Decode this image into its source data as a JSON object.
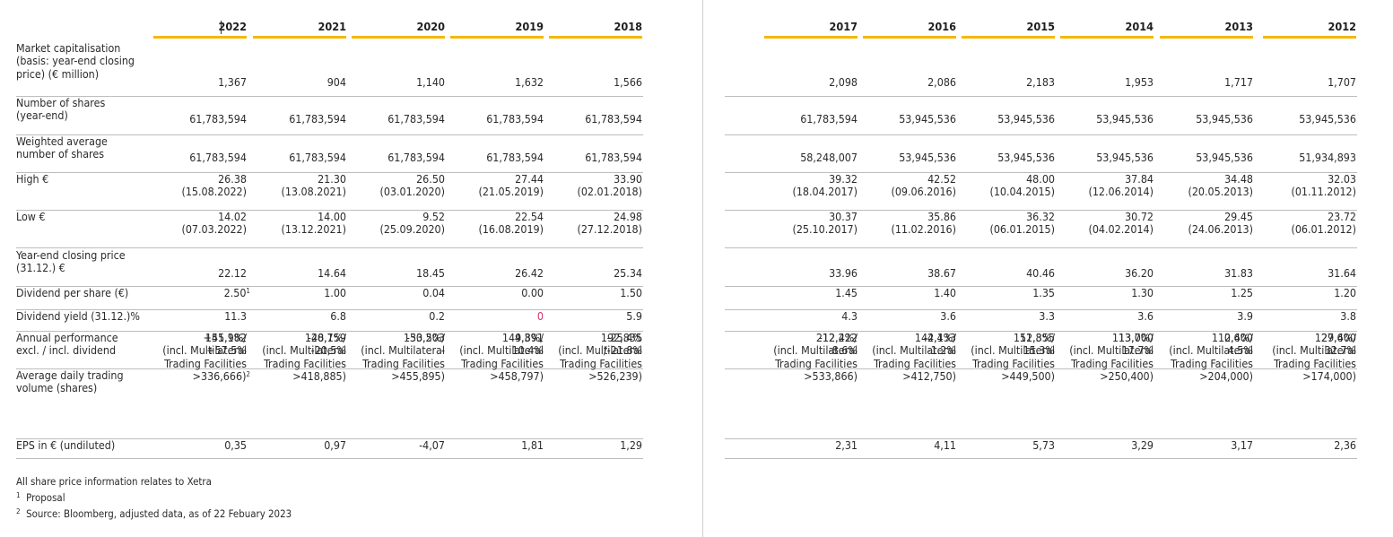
{
  "years": [
    "2022",
    "2021",
    "2020",
    "2019",
    "2018",
    "2017",
    "2016",
    "2015",
    "2014",
    "2013",
    "2012"
  ],
  "rows": [
    {
      "label_lines": [
        "Market capitalisation",
        "(basis: year-end closing",
        "price) (€ million)"
      ],
      "values": [
        [
          "1,367"
        ],
        [
          "904"
        ],
        [
          "1,140"
        ],
        [
          "1,632"
        ],
        [
          "1,566"
        ],
        [
          "2,098"
        ],
        [
          "2,086"
        ],
        [
          "2,183"
        ],
        [
          "1,953"
        ],
        [
          "1,717"
        ],
        [
          "1,707"
        ]
      ]
    },
    {
      "label_lines": [
        "Number of shares",
        "(year-end)"
      ],
      "values": [
        [
          "61,783,594"
        ],
        [
          "61,783,594"
        ],
        [
          "61,783,594"
        ],
        [
          "61,783,594"
        ],
        [
          "61,783,594"
        ],
        [
          "61,783,594"
        ],
        [
          "53,945,536"
        ],
        [
          "53,945,536"
        ],
        [
          "53,945,536"
        ],
        [
          "53,945,536"
        ],
        [
          "53,945,536"
        ]
      ]
    },
    {
      "label_lines": [
        "Weighted average",
        "number of shares"
      ],
      "values": [
        [
          "61,783,594"
        ],
        [
          "61,783,594"
        ],
        [
          "61,783,594"
        ],
        [
          "61,783,594"
        ],
        [
          "61,783,594"
        ],
        [
          "58,248,007"
        ],
        [
          "53,945,536"
        ],
        [
          "53,945,536"
        ],
        [
          "53,945,536"
        ],
        [
          "53,945,536"
        ],
        [
          "51,934,893"
        ]
      ]
    },
    {
      "label_lines": [
        "High €"
      ],
      "values": [
        [
          "26.38",
          "(15.08.2022)"
        ],
        [
          "21.30",
          "(13.08.2021)"
        ],
        [
          "26.50",
          "(03.01.2020)"
        ],
        [
          "27.44",
          "(21.05.2019)"
        ],
        [
          "33.90",
          "(02.01.2018)"
        ],
        [
          "39.32",
          "(18.04.2017)"
        ],
        [
          "42.52",
          "(09.06.2016)"
        ],
        [
          "48.00",
          "(10.04.2015)"
        ],
        [
          "37.84",
          "(12.06.2014)"
        ],
        [
          "34.48",
          "(20.05.2013)"
        ],
        [
          "32.03",
          "(01.11.2012)"
        ]
      ]
    },
    {
      "label_lines": [
        "Low €"
      ],
      "values": [
        [
          "14.02",
          "(07.03.2022)"
        ],
        [
          "14.00",
          "(13.12.2021)"
        ],
        [
          "9.52",
          "(25.09.2020)"
        ],
        [
          "22.54",
          "(16.08.2019)"
        ],
        [
          "24.98",
          "(27.12.2018)"
        ],
        [
          "30.37",
          "(25.10.2017)"
        ],
        [
          "35.86",
          "(11.02.2016)"
        ],
        [
          "36.32",
          "(06.01.2015)"
        ],
        [
          "30.72",
          "(04.02.2014)"
        ],
        [
          "29.45",
          "(24.06.2013)"
        ],
        [
          "23.72",
          "(06.01.2012)"
        ]
      ]
    },
    {
      "label_lines": [
        "Year-end closing price",
        "(31.12.) €"
      ],
      "values": [
        [
          "22.12"
        ],
        [
          "14.64"
        ],
        [
          "18.45"
        ],
        [
          "26.42"
        ],
        [
          "25.34"
        ],
        [
          "33.96"
        ],
        [
          "38.67"
        ],
        [
          "40.46"
        ],
        [
          "36.20"
        ],
        [
          "31.83"
        ],
        [
          "31.64"
        ]
      ]
    },
    {
      "label_lines": [
        "Dividend per share (€)"
      ],
      "values": [
        [
          "2.50"
        ],
        [
          "1.00"
        ],
        [
          "0.04"
        ],
        [
          "0.00"
        ],
        [
          "1.50"
        ],
        [
          "1.45"
        ],
        [
          "1.40"
        ],
        [
          "1.35"
        ],
        [
          "1.30"
        ],
        [
          "1.25"
        ],
        [
          "1.20"
        ]
      ]
    },
    {
      "label_lines": [
        "Dividend yield (31.12.)%"
      ],
      "values": [
        [
          "11.3"
        ],
        [
          "6.8"
        ],
        [
          "0.2"
        ],
        [
          "0"
        ],
        [
          "5.9"
        ],
        [
          "4.3"
        ],
        [
          "3.6"
        ],
        [
          "3.3"
        ],
        [
          "3.6"
        ],
        [
          "3.9"
        ],
        [
          "3.8"
        ]
      ]
    },
    {
      "label_lines": [
        "Annual performance",
        "excl. / incl. dividend"
      ],
      "values": [
        [
          "+51.1%/",
          "+57.5%"
        ],
        [
          "-20,7%/",
          "-20,5%"
        ],
        [
          "-30.2%/",
          "-"
        ],
        [
          "4.3%/",
          "10.4%"
        ],
        [
          "-25.4%",
          "/-21.8%"
        ],
        [
          "-12.2%/",
          "-8.6%"
        ],
        [
          "-4.4%/",
          "-1.2%"
        ],
        [
          "11.8%/",
          "15.3%"
        ],
        [
          "13.7%/",
          "17.7%"
        ],
        [
          "0.6%/",
          "4.5%"
        ],
        [
          "27.6%/",
          "32.7%"
        ]
      ]
    },
    {
      "label_lines": [
        "Average daily trading",
        "volume (shares)"
      ],
      "values": [
        [
          "145,982",
          "(incl. Multilateral",
          "Trading Facilities",
          ">336,666)"
        ],
        [
          "148,159",
          "(incl. Multilateral",
          "Trading Facilities",
          ">418,885)"
        ],
        [
          "153,503",
          "(incl. Multilateral",
          "Trading Facilities",
          ">455,895)"
        ],
        [
          "149,891",
          "(incl. Multilateral",
          "Trading Facilities",
          ">458,797)"
        ],
        [
          "192,835",
          "(incl. Multilateral",
          "Trading Facilities",
          ">526,239)"
        ],
        [
          "212,422",
          "(incl. Multilateral",
          "Trading Facilities",
          ">533,866)"
        ],
        [
          "142,133",
          "(incl. Multilateral",
          "Trading Facilities",
          ">412,750)"
        ],
        [
          "152,355",
          "(incl. Multilateral",
          "Trading Facilities",
          ">449,500)"
        ],
        [
          "113,000",
          "(incl. Multilateral",
          "Trading Facilities",
          ">250,400)"
        ],
        [
          "112,400",
          "(incl. Multilateral",
          "Trading Facilities",
          ">204,000)"
        ],
        [
          "129,400",
          "(incl. Multilateral",
          "Trading Facilities",
          ">174,000)"
        ]
      ]
    },
    {
      "label_lines": [
        "EPS in € (undiluted)"
      ],
      "values": [
        [
          "0,35"
        ],
        [
          "0,97"
        ],
        [
          "-4,07"
        ],
        [
          "1,81"
        ],
        [
          "1,29"
        ],
        [
          "2,31"
        ],
        [
          "4,11"
        ],
        [
          "5,73"
        ],
        [
          "3,29"
        ],
        [
          "3,17"
        ],
        [
          "2,36"
        ]
      ]
    }
  ],
  "footnote_refs": {
    "dividend_2022": "1",
    "volume_2022": "2"
  },
  "footer": {
    "note": "All share price information relates to Xetra",
    "fn1_mark": "1",
    "fn1": "Proposal",
    "fn2_mark": "2",
    "fn2": "Source: Bloomberg, adjusted data, as of 22 Febuary 2023"
  },
  "colors": {
    "accent": "#f6b800",
    "zero_highlight": "#d6336c"
  }
}
